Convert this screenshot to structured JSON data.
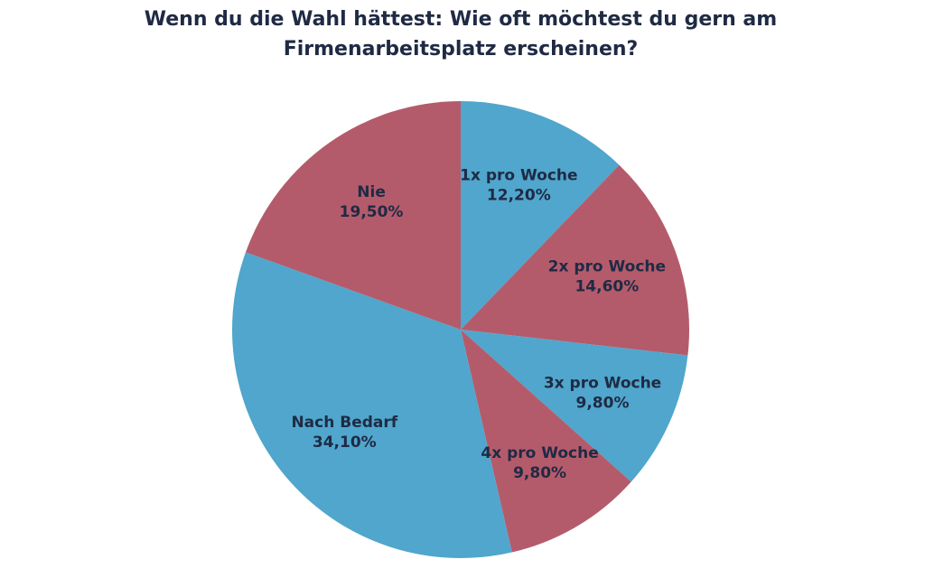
{
  "chart_data": {
    "type": "pie",
    "title": [
      "Wenn du die Wahl hättest: Wie oft möchtest du gern am",
      "Firmenarbeitsplatz erscheinen?"
    ],
    "categories": [
      "1x pro Woche",
      "2x pro Woche",
      "3x pro Woche",
      "4x pro Woche",
      "Nach Bedarf",
      "Nie"
    ],
    "values": [
      12.2,
      14.6,
      9.8,
      9.8,
      34.1,
      19.5
    ],
    "value_labels": [
      "12,20%",
      "14,60%",
      "9,80%",
      "9,80%",
      "34,10%",
      "19,50%"
    ],
    "colors": [
      "#50a6cc",
      "#b45b6b",
      "#50a6cc",
      "#b45b6b",
      "#50a6cc",
      "#b45b6b"
    ]
  }
}
